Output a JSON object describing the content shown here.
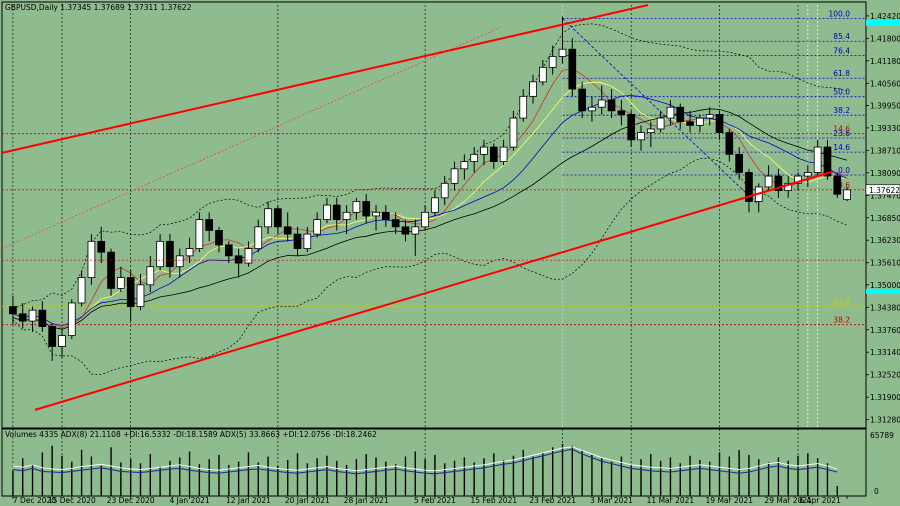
{
  "chart_data": {
    "type": "candlestick",
    "title": "GBPUSD,Daily  1.37345  1.37689  1.37311  1.37622",
    "indicator_title": "Volumes 4335   ADX(8) 21.1108 +DI:16.5332 -DI:18.1589  ADX(5) 33.8663 +DI:12.0756 -DI:18.2462",
    "price_label": "1.37622",
    "volume_max_label": "65789",
    "volume_min_label": "0",
    "ylim": [
      1.3105,
      1.4272
    ],
    "y_ticks": [
      "1.42420",
      "1.41800",
      "1.41180",
      "1.40560",
      "1.39950",
      "1.39330",
      "1.38710",
      "1.38090",
      "1.37470",
      "1.36850",
      "1.36230",
      "1.35610",
      "1.35000",
      "1.34380",
      "1.33760",
      "1.33140",
      "1.32520",
      "1.31900",
      "1.31280"
    ],
    "x_ticks": [
      "7 Dec 2020",
      "15 Dec 2020",
      "23 Dec 2020",
      "4 Jan 2021",
      "12 Jan 2021",
      "20 Jan 2021",
      "28 Jan 2021",
      "5 Feb 2021",
      "15 Feb 2021",
      "23 Feb 2021",
      "3 Mar 2021",
      "11 Mar 2021",
      "19 Mar 2021",
      "29 Mar 2021",
      "6 Apr 2021"
    ],
    "fib_levels": [
      {
        "label": "100.0",
        "price": 1.4235,
        "color": "#0000cc"
      },
      {
        "label": "85.4",
        "price": 1.4172,
        "color": "#0000cc"
      },
      {
        "label": "76.4",
        "price": 1.4133,
        "color": "#0000cc"
      },
      {
        "label": "61.8",
        "price": 1.407,
        "color": "#0000cc"
      },
      {
        "label": "50.0",
        "price": 1.4019,
        "color": "#0000cc"
      },
      {
        "label": "38.2",
        "price": 1.3968,
        "color": "#0000cc"
      },
      {
        "label": "23.6",
        "price": 1.3905,
        "color": "#0000cc"
      },
      {
        "label": "14.6",
        "price": 1.3866,
        "color": "#0000cc"
      },
      {
        "label": "0.0",
        "price": 1.3803,
        "color": "#0000cc"
      },
      {
        "label": "14.6",
        "price": 1.3917,
        "color": "#cc0000"
      },
      {
        "label": "23.6",
        "price": 1.3762,
        "color": "#cc0000"
      },
      {
        "label": "61.8",
        "price": 1.344,
        "color": "#cccc00"
      },
      {
        "label": "38.2",
        "price": 1.339,
        "color": "#cc0000"
      }
    ],
    "candles": [
      [
        1.344,
        1.347,
        1.339,
        1.342
      ],
      [
        1.342,
        1.345,
        1.338,
        1.34
      ],
      [
        1.34,
        1.344,
        1.337,
        1.343
      ],
      [
        1.343,
        1.3455,
        1.337,
        1.3385
      ],
      [
        1.3385,
        1.3395,
        1.329,
        1.333
      ],
      [
        1.333,
        1.338,
        1.33,
        1.336
      ],
      [
        1.336,
        1.346,
        1.335,
        1.345
      ],
      [
        1.345,
        1.354,
        1.344,
        1.352
      ],
      [
        1.352,
        1.364,
        1.35,
        1.362
      ],
      [
        1.362,
        1.366,
        1.356,
        1.359
      ],
      [
        1.359,
        1.36,
        1.347,
        1.349
      ],
      [
        1.349,
        1.355,
        1.348,
        1.352
      ],
      [
        1.352,
        1.354,
        1.34,
        1.344
      ],
      [
        1.344,
        1.353,
        1.343,
        1.35
      ],
      [
        1.35,
        1.358,
        1.348,
        1.355
      ],
      [
        1.355,
        1.364,
        1.354,
        1.362
      ],
      [
        1.362,
        1.364,
        1.352,
        1.355
      ],
      [
        1.355,
        1.36,
        1.352,
        1.358
      ],
      [
        1.358,
        1.363,
        1.356,
        1.36
      ],
      [
        1.36,
        1.37,
        1.359,
        1.368
      ],
      [
        1.368,
        1.37,
        1.362,
        1.365
      ],
      [
        1.365,
        1.366,
        1.359,
        1.361
      ],
      [
        1.361,
        1.362,
        1.356,
        1.358
      ],
      [
        1.358,
        1.36,
        1.352,
        1.356
      ],
      [
        1.356,
        1.362,
        1.355,
        1.36
      ],
      [
        1.36,
        1.368,
        1.359,
        1.366
      ],
      [
        1.366,
        1.373,
        1.364,
        1.371
      ],
      [
        1.371,
        1.372,
        1.364,
        1.366
      ],
      [
        1.366,
        1.37,
        1.362,
        1.364
      ],
      [
        1.364,
        1.366,
        1.358,
        1.36
      ],
      [
        1.36,
        1.366,
        1.359,
        1.364
      ],
      [
        1.364,
        1.37,
        1.363,
        1.368
      ],
      [
        1.368,
        1.374,
        1.367,
        1.372
      ],
      [
        1.372,
        1.374,
        1.365,
        1.368
      ],
      [
        1.368,
        1.372,
        1.364,
        1.37
      ],
      [
        1.37,
        1.374,
        1.368,
        1.373
      ],
      [
        1.373,
        1.375,
        1.367,
        1.369
      ],
      [
        1.369,
        1.372,
        1.365,
        1.37
      ],
      [
        1.37,
        1.372,
        1.366,
        1.368
      ],
      [
        1.368,
        1.37,
        1.364,
        1.366
      ],
      [
        1.366,
        1.368,
        1.362,
        1.364
      ],
      [
        1.364,
        1.368,
        1.358,
        1.366
      ],
      [
        1.366,
        1.372,
        1.365,
        1.37
      ],
      [
        1.37,
        1.376,
        1.369,
        1.374
      ],
      [
        1.374,
        1.38,
        1.372,
        1.378
      ],
      [
        1.378,
        1.384,
        1.376,
        1.382
      ],
      [
        1.382,
        1.386,
        1.379,
        1.384
      ],
      [
        1.384,
        1.388,
        1.381,
        1.386
      ],
      [
        1.386,
        1.39,
        1.383,
        1.388
      ],
      [
        1.388,
        1.389,
        1.382,
        1.384
      ],
      [
        1.384,
        1.39,
        1.383,
        1.388
      ],
      [
        1.388,
        1.398,
        1.387,
        1.396
      ],
      [
        1.396,
        1.404,
        1.395,
        1.402
      ],
      [
        1.402,
        1.408,
        1.4,
        1.406
      ],
      [
        1.406,
        1.412,
        1.405,
        1.41
      ],
      [
        1.41,
        1.416,
        1.408,
        1.413
      ],
      [
        1.413,
        1.424,
        1.411,
        1.415
      ],
      [
        1.415,
        1.418,
        1.402,
        1.404
      ],
      [
        1.404,
        1.406,
        1.396,
        1.398
      ],
      [
        1.398,
        1.402,
        1.395,
        1.399
      ],
      [
        1.399,
        1.405,
        1.397,
        1.401
      ],
      [
        1.401,
        1.404,
        1.396,
        1.398
      ],
      [
        1.398,
        1.401,
        1.394,
        1.397
      ],
      [
        1.397,
        1.398,
        1.388,
        1.39
      ],
      [
        1.39,
        1.394,
        1.387,
        1.392
      ],
      [
        1.392,
        1.395,
        1.388,
        1.393
      ],
      [
        1.393,
        1.398,
        1.392,
        1.396
      ],
      [
        1.396,
        1.401,
        1.394,
        1.399
      ],
      [
        1.399,
        1.4,
        1.393,
        1.395
      ],
      [
        1.395,
        1.398,
        1.392,
        1.394
      ],
      [
        1.394,
        1.397,
        1.392,
        1.396
      ],
      [
        1.396,
        1.399,
        1.394,
        1.397
      ],
      [
        1.397,
        1.398,
        1.39,
        1.392
      ],
      [
        1.392,
        1.393,
        1.384,
        1.386
      ],
      [
        1.386,
        1.388,
        1.379,
        1.381
      ],
      [
        1.381,
        1.382,
        1.37,
        1.373
      ],
      [
        1.373,
        1.378,
        1.37,
        1.377
      ],
      [
        1.377,
        1.383,
        1.376,
        1.38
      ],
      [
        1.38,
        1.382,
        1.374,
        1.376
      ],
      [
        1.376,
        1.38,
        1.374,
        1.378
      ],
      [
        1.378,
        1.381,
        1.376,
        1.38
      ],
      [
        1.38,
        1.383,
        1.377,
        1.381
      ],
      [
        1.381,
        1.39,
        1.38,
        1.388
      ],
      [
        1.388,
        1.39,
        1.379,
        1.38
      ],
      [
        1.38,
        1.381,
        1.374,
        1.375
      ],
      [
        1.3735,
        1.3769,
        1.3731,
        1.3762
      ]
    ],
    "volumes": [
      30,
      45,
      38,
      52,
      60,
      48,
      41,
      55,
      47,
      36,
      58,
      40,
      44,
      39,
      50,
      35,
      42,
      46,
      53,
      38,
      44,
      49,
      37,
      41,
      52,
      40,
      47,
      36,
      43,
      51,
      39,
      45,
      48,
      42,
      37,
      44,
      50,
      46,
      41,
      38,
      47,
      53,
      44,
      49,
      39,
      42,
      46,
      40,
      45,
      51,
      43,
      48,
      55,
      47,
      52,
      58,
      62,
      60,
      55,
      49,
      45,
      41,
      47,
      38,
      44,
      50,
      42,
      46,
      39,
      48,
      43,
      41,
      52,
      47,
      55,
      49,
      44,
      40,
      46,
      42,
      48,
      51,
      45,
      39,
      12
    ],
    "adx_main": [
      50,
      48,
      52,
      47,
      45,
      44,
      46,
      49,
      51,
      53,
      50,
      47,
      45,
      44,
      46,
      48,
      50,
      52,
      49,
      46,
      44,
      43,
      45,
      47,
      49,
      51,
      48,
      46,
      44,
      43,
      45,
      47,
      49,
      46,
      44,
      42,
      44,
      46,
      48,
      50,
      47,
      45,
      43,
      42,
      44,
      46,
      48,
      50,
      52,
      55,
      58,
      60,
      64,
      68,
      72,
      76,
      80,
      82,
      76,
      70,
      64,
      60,
      56,
      52,
      50,
      48,
      47,
      46,
      48,
      50,
      52,
      50,
      48,
      46,
      44,
      46,
      50,
      54,
      56,
      52,
      50,
      52,
      54,
      50,
      45
    ],
    "adx_second": [
      44,
      42,
      46,
      41,
      40,
      39,
      41,
      43,
      45,
      47,
      44,
      41,
      40,
      39,
      41,
      43,
      45,
      46,
      43,
      41,
      39,
      38,
      40,
      42,
      44,
      45,
      43,
      41,
      39,
      38,
      40,
      42,
      44,
      41,
      39,
      37,
      39,
      41,
      43,
      45,
      42,
      40,
      38,
      37,
      39,
      41,
      43,
      45,
      47,
      50,
      53,
      55,
      59,
      63,
      67,
      71,
      75,
      78,
      70,
      64,
      58,
      54,
      50,
      46,
      44,
      42,
      41,
      40,
      42,
      44,
      46,
      44,
      42,
      40,
      38,
      40,
      44,
      48,
      50,
      46,
      44,
      46,
      48,
      44,
      40
    ]
  }
}
